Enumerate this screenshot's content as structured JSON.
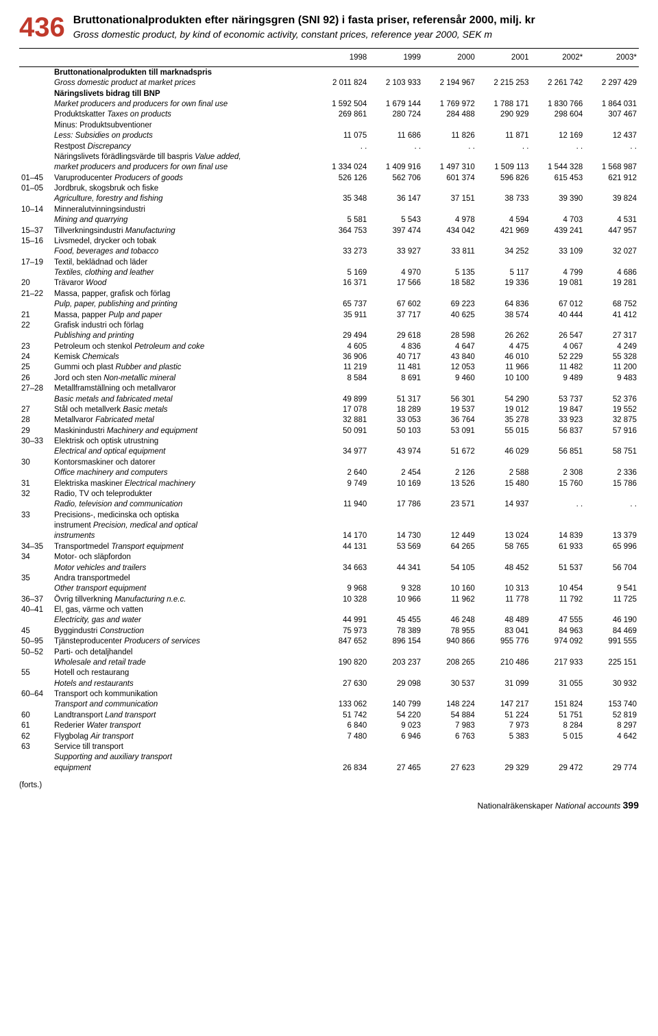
{
  "table_number": "436",
  "title_sv": "Bruttonationalprodukten efter näringsgren (SNI 92) i fasta priser, referensår 2000, milj. kr",
  "title_en": "Gross domestic product, by kind of economic activity, constant prices, reference year 2000, SEK m",
  "columns": [
    "1998",
    "1999",
    "2000",
    "2001",
    "2002*",
    "2003*"
  ],
  "rows": [
    {
      "bold": true,
      "code": "",
      "sv": "Bruttonationalprodukten till marknadspris",
      "en": "",
      "v": [
        "",
        "",
        "",
        "",
        "",
        ""
      ]
    },
    {
      "code": "",
      "sv": "",
      "en": "Gross domestic product at market prices",
      "v": [
        "2 011 824",
        "2 103 933",
        "2 194 967",
        "2 215 253",
        "2 261 742",
        "2 297 429"
      ]
    },
    {
      "bold": true,
      "code": "",
      "sv": "Näringslivets bidrag till BNP",
      "en": "",
      "v": [
        "",
        "",
        "",
        "",
        "",
        ""
      ]
    },
    {
      "code": "",
      "sv": "",
      "en": "Market producers and producers for own final use",
      "v": [
        "1 592 504",
        "1 679 144",
        "1 769 972",
        "1 788 171",
        "1 830 766",
        "1 864 031"
      ]
    },
    {
      "code": "",
      "sv": "Produktskatter ",
      "en": "Taxes on products",
      "v": [
        "269 861",
        "280 724",
        "284 488",
        "290 929",
        "298 604",
        "307 467"
      ]
    },
    {
      "code": "",
      "sv": "Minus: Produktsubventioner",
      "en": "",
      "v": [
        "",
        "",
        "",
        "",
        "",
        ""
      ]
    },
    {
      "code": "",
      "sv": "",
      "en": "Less: Subsidies on products",
      "v": [
        "11 075",
        "11 686",
        "11 826",
        "11 871",
        "12 169",
        "12 437"
      ]
    },
    {
      "code": "",
      "sv": "Restpost ",
      "en": "Discrepancy",
      "v": [
        ". .",
        ". .",
        ". .",
        ". .",
        ". .",
        ". ."
      ]
    },
    {
      "code": "",
      "sv": "Näringslivets förädlingsvärde till baspris ",
      "en": "Value added,",
      "v": [
        "",
        "",
        "",
        "",
        "",
        ""
      ]
    },
    {
      "code": "",
      "sv": "",
      "en": "market producers and producers for own final use",
      "v": [
        "1 334 024",
        "1 409 916",
        "1 497 310",
        "1 509 113",
        "1 544 328",
        "1 568 987"
      ]
    },
    {
      "code": "01–45",
      "sv": "Varuproducenter ",
      "en": "Producers of goods",
      "v": [
        "526 126",
        "562 706",
        "601 374",
        "596 826",
        "615 453",
        "621 912"
      ]
    },
    {
      "code": "01–05",
      "sv": "Jordbruk, skogsbruk och fiske",
      "en": "",
      "v": [
        "",
        "",
        "",
        "",
        "",
        ""
      ]
    },
    {
      "code": "",
      "sv": "",
      "en": "Agriculture, forestry and fishing",
      "v": [
        "35 348",
        "36 147",
        "37 151",
        "38 733",
        "39 390",
        "39 824"
      ]
    },
    {
      "code": "10–14",
      "sv": "Minneralutvinningsindustri",
      "en": "",
      "v": [
        "",
        "",
        "",
        "",
        "",
        ""
      ]
    },
    {
      "code": "",
      "sv": "",
      "en": "Mining and quarrying",
      "v": [
        "5 581",
        "5 543",
        "4 978",
        "4 594",
        "4 703",
        "4 531"
      ]
    },
    {
      "code": "15–37",
      "sv": "Tillverkningsindustri ",
      "en": "Manufacturing",
      "v": [
        "364 753",
        "397 474",
        "434 042",
        "421 969",
        "439 241",
        "447 957"
      ]
    },
    {
      "code": "15–16",
      "sv": "Livsmedel, drycker och tobak",
      "en": "",
      "v": [
        "",
        "",
        "",
        "",
        "",
        ""
      ]
    },
    {
      "code": "",
      "sv": "",
      "en": "Food, beverages and tobacco",
      "v": [
        "33 273",
        "33 927",
        "33 811",
        "34 252",
        "33 109",
        "32 027"
      ]
    },
    {
      "code": "17–19",
      "sv": "Textil, beklädnad och läder",
      "en": "",
      "v": [
        "",
        "",
        "",
        "",
        "",
        ""
      ]
    },
    {
      "code": "",
      "sv": "",
      "en": "Textiles, clothing and leather",
      "v": [
        "5 169",
        "4 970",
        "5 135",
        "5 117",
        "4 799",
        "4 686"
      ]
    },
    {
      "code": "20",
      "sv": "Trävaror ",
      "en": "Wood",
      "v": [
        "16 371",
        "17 566",
        "18 582",
        "19 336",
        "19 081",
        "19 281"
      ]
    },
    {
      "code": "21–22",
      "sv": "Massa, papper, grafisk och förlag",
      "en": "",
      "v": [
        "",
        "",
        "",
        "",
        "",
        ""
      ]
    },
    {
      "code": "",
      "sv": "",
      "en": "Pulp, paper, publishing and printing",
      "v": [
        "65 737",
        "67 602",
        "69 223",
        "64 836",
        "67 012",
        "68 752"
      ]
    },
    {
      "code": "21",
      "sv": "Massa, papper ",
      "en": "Pulp and paper",
      "v": [
        "35 911",
        "37 717",
        "40 625",
        "38 574",
        "40 444",
        "41 412"
      ]
    },
    {
      "code": "22",
      "sv": "Grafisk industri och förlag",
      "en": "",
      "v": [
        "",
        "",
        "",
        "",
        "",
        ""
      ]
    },
    {
      "code": "",
      "sv": "",
      "en": "Publishing and printing",
      "v": [
        "29 494",
        "29 618",
        "28 598",
        "26 262",
        "26 547",
        "27 317"
      ]
    },
    {
      "code": "23",
      "sv": "Petroleum och stenkol ",
      "en": "Petroleum and coke",
      "v": [
        "4 605",
        "4 836",
        "4 647",
        "4 475",
        "4 067",
        "4 249"
      ]
    },
    {
      "code": "24",
      "sv": "Kemisk ",
      "en": "Chemicals",
      "v": [
        "36 906",
        "40 717",
        "43 840",
        "46 010",
        "52 229",
        "55 328"
      ]
    },
    {
      "code": "25",
      "sv": "Gummi och plast ",
      "en": "Rubber and plastic",
      "v": [
        "11 219",
        "11 481",
        "12 053",
        "11 966",
        "11 482",
        "11 200"
      ]
    },
    {
      "code": "26",
      "sv": "Jord och sten ",
      "en": "Non-metallic mineral",
      "v": [
        "8 584",
        "8 691",
        "9 460",
        "10 100",
        "9 489",
        "9 483"
      ]
    },
    {
      "code": "27–28",
      "sv": "Metallframställning och metallvaror",
      "en": "",
      "v": [
        "",
        "",
        "",
        "",
        "",
        ""
      ]
    },
    {
      "code": "",
      "sv": "",
      "en": "Basic metals and fabricated metal",
      "v": [
        "49 899",
        "51 317",
        "56 301",
        "54 290",
        "53 737",
        "52 376"
      ]
    },
    {
      "code": "27",
      "sv": "Stål och metallverk ",
      "en": "Basic metals",
      "v": [
        "17 078",
        "18 289",
        "19 537",
        "19 012",
        "19 847",
        "19 552"
      ]
    },
    {
      "code": "28",
      "sv": "Metallvaror ",
      "en": "Fabricated metal",
      "v": [
        "32 881",
        "33 053",
        "36 764",
        "35 278",
        "33 923",
        "32 875"
      ]
    },
    {
      "code": "29",
      "sv": "Maskinindustri ",
      "en": "Machinery and equipment",
      "v": [
        "50 091",
        "50 103",
        "53 091",
        "55 015",
        "56 837",
        "57 916"
      ]
    },
    {
      "code": "30–33",
      "sv": "Elektrisk och optisk utrustning",
      "en": "",
      "v": [
        "",
        "",
        "",
        "",
        "",
        ""
      ]
    },
    {
      "code": "",
      "sv": "",
      "en": "Electrical and optical equipment",
      "v": [
        "34 977",
        "43 974",
        "51 672",
        "46 029",
        "56 851",
        "58 751"
      ]
    },
    {
      "code": "30",
      "sv": "Kontorsmaskiner och datorer",
      "en": "",
      "v": [
        "",
        "",
        "",
        "",
        "",
        ""
      ]
    },
    {
      "code": "",
      "sv": "",
      "en": "Office machinery and computers",
      "v": [
        "2 640",
        "2 454",
        "2 126",
        "2 588",
        "2 308",
        "2 336"
      ]
    },
    {
      "code": "31",
      "sv": "Elektriska maskiner ",
      "en": "Electrical machinery",
      "v": [
        "9 749",
        "10 169",
        "13 526",
        "15 480",
        "15 760",
        "15 786"
      ]
    },
    {
      "code": "32",
      "sv": "Radio, TV och teleprodukter",
      "en": "",
      "v": [
        "",
        "",
        "",
        "",
        "",
        ""
      ]
    },
    {
      "code": "",
      "sv": "",
      "en": "Radio, television and communication",
      "v": [
        "11 940",
        "17 786",
        "23 571",
        "14 937",
        ". .",
        ". ."
      ]
    },
    {
      "code": "33",
      "sv": "Precisions-, medicinska och optiska",
      "en": "",
      "v": [
        "",
        "",
        "",
        "",
        "",
        ""
      ]
    },
    {
      "code": "",
      "sv": "instrument ",
      "en": "Precision, medical and optical",
      "v": [
        "",
        "",
        "",
        "",
        "",
        ""
      ]
    },
    {
      "code": "",
      "sv": "",
      "en": "instruments",
      "v": [
        "14 170",
        "14 730",
        "12 449",
        "13 024",
        "14 839",
        "13 379"
      ]
    },
    {
      "code": "34–35",
      "sv": "Transportmedel ",
      "en": "Transport equipment",
      "v": [
        "44 131",
        "53 569",
        "64 265",
        "58 765",
        "61 933",
        "65 996"
      ]
    },
    {
      "code": "34",
      "sv": "Motor- och släpfordon",
      "en": "",
      "v": [
        "",
        "",
        "",
        "",
        "",
        ""
      ]
    },
    {
      "code": "",
      "sv": "",
      "en": "Motor vehicles and trailers",
      "v": [
        "34 663",
        "44 341",
        "54 105",
        "48 452",
        "51 537",
        "56 704"
      ]
    },
    {
      "code": "35",
      "sv": "Andra transportmedel",
      "en": "",
      "v": [
        "",
        "",
        "",
        "",
        "",
        ""
      ]
    },
    {
      "code": "",
      "sv": "",
      "en": "Other transport equipment",
      "v": [
        "9 968",
        "9 328",
        "10 160",
        "10 313",
        "10 454",
        "9 541"
      ]
    },
    {
      "code": "36–37",
      "sv": "Övrig tillverkning ",
      "en": "Manufacturing n.e.c.",
      "v": [
        "10 328",
        "10 966",
        "11 962",
        "11 778",
        "11 792",
        "11 725"
      ]
    },
    {
      "code": "40–41",
      "sv": "El, gas, värme och vatten",
      "en": "",
      "v": [
        "",
        "",
        "",
        "",
        "",
        ""
      ]
    },
    {
      "code": "",
      "sv": "",
      "en": "Electricity, gas and water",
      "v": [
        "44 991",
        "45 455",
        "46 248",
        "48 489",
        "47 555",
        "46 190"
      ]
    },
    {
      "code": "45",
      "sv": "Byggindustri ",
      "en": "Construction",
      "v": [
        "75 973",
        "78 389",
        "78 955",
        "83 041",
        "84 963",
        "84 469"
      ]
    },
    {
      "code": "50–95",
      "sv": "Tjänsteproducenter ",
      "en": "Producers of services",
      "v": [
        "847 652",
        "896 154",
        "940 866",
        "955 776",
        "974 092",
        "991 555"
      ]
    },
    {
      "code": "50–52",
      "sv": "Parti- och detaljhandel",
      "en": "",
      "v": [
        "",
        "",
        "",
        "",
        "",
        ""
      ]
    },
    {
      "code": "",
      "sv": "",
      "en": "Wholesale and retail trade",
      "v": [
        "190 820",
        "203 237",
        "208 265",
        "210 486",
        "217 933",
        "225 151"
      ]
    },
    {
      "code": "55",
      "sv": "Hotell och restaurang",
      "en": "",
      "v": [
        "",
        "",
        "",
        "",
        "",
        ""
      ]
    },
    {
      "code": "",
      "sv": "",
      "en": "Hotels and restaurants",
      "v": [
        "27 630",
        "29 098",
        "30 537",
        "31 099",
        "31 055",
        "30 932"
      ]
    },
    {
      "code": "60–64",
      "sv": "Transport och kommunikation",
      "en": "",
      "v": [
        "",
        "",
        "",
        "",
        "",
        ""
      ]
    },
    {
      "code": "",
      "sv": "",
      "en": "Transport and communication",
      "v": [
        "133 062",
        "140 799",
        "148 224",
        "147 217",
        "151 824",
        "153 740"
      ]
    },
    {
      "code": "60",
      "sv": "Landtransport ",
      "en": "Land transport",
      "v": [
        "51 742",
        "54 220",
        "54 884",
        "51 224",
        "51 751",
        "52 819"
      ]
    },
    {
      "code": "61",
      "sv": "Rederier ",
      "en": "Water transport",
      "v": [
        "6 840",
        "9 023",
        "7 983",
        "7 973",
        "8 284",
        "8 297"
      ]
    },
    {
      "code": "62",
      "sv": "Flygbolag ",
      "en": "Air transport",
      "v": [
        "7 480",
        "6 946",
        "6 763",
        "5 383",
        "5 015",
        "4 642"
      ]
    },
    {
      "code": "63",
      "sv": "Service till transport",
      "en": "",
      "v": [
        "",
        "",
        "",
        "",
        "",
        ""
      ]
    },
    {
      "code": "",
      "sv": "",
      "en": "Supporting and auxiliary transport",
      "v": [
        "",
        "",
        "",
        "",
        "",
        ""
      ]
    },
    {
      "code": "",
      "sv": "",
      "en": "equipment",
      "v": [
        "26 834",
        "27 465",
        "27 623",
        "29 329",
        "29 472",
        "29 774"
      ]
    }
  ],
  "forts": "(forts.)",
  "footer_sv": "Nationalräkenskaper",
  "footer_en": "National accounts",
  "page": "399"
}
